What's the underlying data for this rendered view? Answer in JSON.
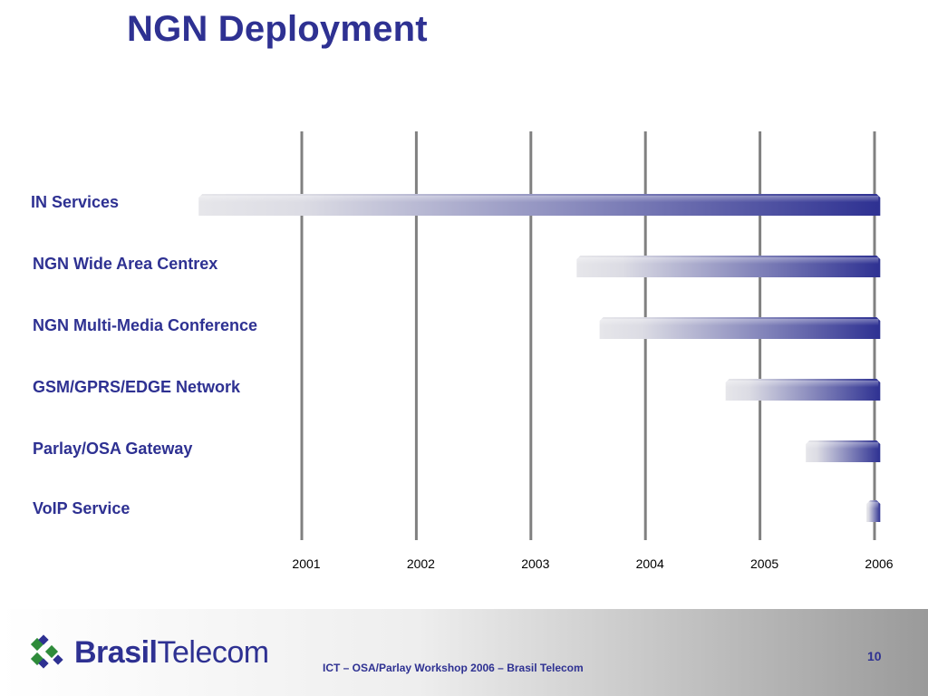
{
  "slide": {
    "title": "NGN Deployment"
  },
  "chart_data": {
    "type": "bar",
    "orientation": "horizontal-gantt",
    "title": "",
    "xlabel": "",
    "ylabel": "",
    "x_ticks": [
      "2001",
      "2002",
      "2003",
      "2004",
      "2005",
      "2006"
    ],
    "xlim": [
      2001,
      2006
    ],
    "grid": true,
    "categories": [
      "IN Services",
      "NGN Wide Area Centrex",
      "NGN Multi-Media Conference",
      "GSM/GPRS/EDGE Network",
      "Parlay/OSA Gateway",
      "VoIP Service"
    ],
    "series": [
      {
        "start": [
          2000.1,
          2003.4,
          2003.6,
          2004.7,
          2005.4,
          2005.93
        ],
        "end": [
          2006.05,
          2006.05,
          2006.05,
          2006.05,
          2006.05,
          2006.05
        ]
      }
    ],
    "colors": {
      "bar_start": "#e6e6ea",
      "bar_end": "#2e3192",
      "grid": "#808080",
      "label": "#2e3192",
      "tick": "#000000"
    }
  },
  "footer": {
    "logo_bold": "Brasil",
    "logo_regular": "Telecom",
    "caption": "ICT – OSA/Parlay Workshop 2006 – Brasil Telecom",
    "page_number": "10"
  }
}
